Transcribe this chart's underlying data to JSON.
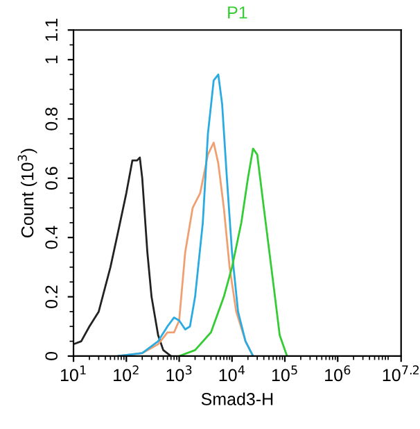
{
  "chart_data": {
    "type": "line",
    "title": "P1",
    "xlabel": "Smad3-H",
    "ylabel": "Count (10$^{3}$)",
    "log": "x",
    "xlim": [
      10,
      15848932
    ],
    "ylim": [
      0,
      1.1
    ],
    "xticks": [
      {
        "value": 10,
        "label": "10$^{1}$"
      },
      {
        "value": 100,
        "label": "10$^{2}$"
      },
      {
        "value": 1000,
        "label": "10$^{3}$"
      },
      {
        "value": 10000,
        "label": "10$^{4}$"
      },
      {
        "value": 100000,
        "label": "10$^{5}$"
      },
      {
        "value": 1000000,
        "label": "10$^{6}$"
      },
      {
        "value": 15848932,
        "label": "10$^{7.2}$"
      }
    ],
    "yticks": [
      0,
      0.2,
      0.4,
      0.6,
      0.8,
      1,
      1.1
    ],
    "grid": false,
    "legend": false,
    "marker": "none",
    "line_style": "solid",
    "series": [
      {
        "color": "#222222",
        "x": [
          10,
          14,
          20,
          30,
          50,
          70,
          100,
          130,
          160,
          180,
          200,
          250,
          300,
          400,
          500,
          700
        ],
        "values": [
          0.04,
          0.05,
          0.1,
          0.15,
          0.3,
          0.42,
          0.55,
          0.66,
          0.66,
          0.67,
          0.6,
          0.35,
          0.2,
          0.07,
          0.02,
          0
        ]
      },
      {
        "color": "#f0a070",
        "x": [
          70,
          200,
          400,
          600,
          800,
          1000,
          1300,
          1800,
          2500,
          3500,
          4500,
          5500,
          7000,
          9000,
          12000,
          18000,
          25000
        ],
        "values": [
          0,
          0.01,
          0.04,
          0.08,
          0.08,
          0.12,
          0.35,
          0.5,
          0.55,
          0.68,
          0.72,
          0.65,
          0.5,
          0.3,
          0.15,
          0.05,
          0
        ]
      },
      {
        "color": "#29abe2",
        "x": [
          70,
          200,
          400,
          600,
          800,
          1000,
          1300,
          1600,
          2000,
          2800,
          3500,
          4500,
          5500,
          6500,
          8000,
          10000,
          13000,
          18000,
          25000
        ],
        "values": [
          0,
          0.01,
          0.05,
          0.1,
          0.13,
          0.12,
          0.09,
          0.1,
          0.2,
          0.45,
          0.75,
          0.93,
          0.95,
          0.85,
          0.6,
          0.35,
          0.15,
          0.05,
          0
        ]
      },
      {
        "color": "#33cc33",
        "x": [
          1000,
          2000,
          4000,
          7000,
          10000,
          15000,
          20000,
          25000,
          30000,
          40000,
          60000,
          80000,
          110000
        ],
        "values": [
          0,
          0.02,
          0.08,
          0.2,
          0.3,
          0.45,
          0.6,
          0.7,
          0.68,
          0.5,
          0.25,
          0.07,
          0
        ]
      }
    ]
  }
}
